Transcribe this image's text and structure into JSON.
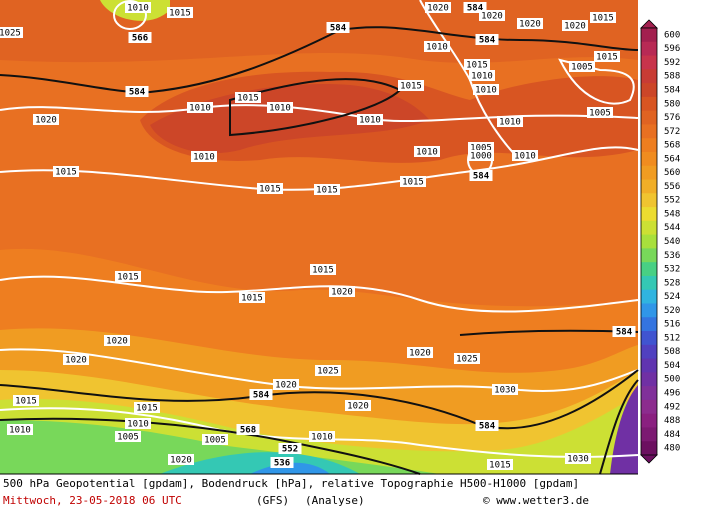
{
  "map": {
    "contour_labels": [
      "1010",
      "1015",
      "566",
      "1020",
      "584",
      "1020",
      "1020",
      "1020",
      "1015",
      "1025",
      "584",
      "584",
      "1010",
      "1015",
      "1010",
      "1005",
      "1015",
      "584",
      "1015",
      "1010",
      "1010",
      "1015",
      "1010",
      "1020",
      "1010",
      "1010",
      "1005",
      "1010",
      "1010",
      "1005",
      "1000",
      "584",
      "1010",
      "1015",
      "1015",
      "1015",
      "1015",
      "1015",
      "1015",
      "1015",
      "1020",
      "1020",
      "1020",
      "1025",
      "584",
      "1025",
      "1020",
      "1020",
      "584",
      "1030",
      "1015",
      "1020",
      "1015",
      "568",
      "1010",
      "1010",
      "1005",
      "1005",
      "552",
      "1010",
      "584",
      "1020",
      "536",
      "1030",
      "1015"
    ],
    "colorbar": {
      "levels": [
        600,
        596,
        592,
        588,
        584,
        580,
        576,
        572,
        568,
        564,
        560,
        556,
        552,
        548,
        544,
        540,
        536,
        532,
        528,
        524,
        520,
        516,
        512,
        508,
        504,
        500,
        496,
        492,
        488,
        484,
        480
      ],
      "colors": [
        "#a3204f",
        "#b82a55",
        "#c8344c",
        "#c83c34",
        "#cc4628",
        "#d85522",
        "#e06322",
        "#e87022",
        "#ee7e20",
        "#f08c20",
        "#f09c22",
        "#f0ae28",
        "#f0c430",
        "#ecdc30",
        "#cce034",
        "#a8e03c",
        "#78d85a",
        "#48d084",
        "#34c8b4",
        "#30b4e0",
        "#3096e8",
        "#3474e0",
        "#4054d0",
        "#5040c0",
        "#6034b0",
        "#7030a4",
        "#80309a",
        "#8c2c8e",
        "#8a2080",
        "#7c1a72",
        "#6c1060"
      ]
    }
  },
  "footer": {
    "line1": "500 hPa Geopotential [gpdam], Bodendruck [hPa], relative Topographie H500-H1000 [gpdam]",
    "date": "Mittwoch, 23-05-2018  06 UTC",
    "model": "(GFS)",
    "run": "(Analyse)",
    "credit": "© www.wetter3.de"
  }
}
